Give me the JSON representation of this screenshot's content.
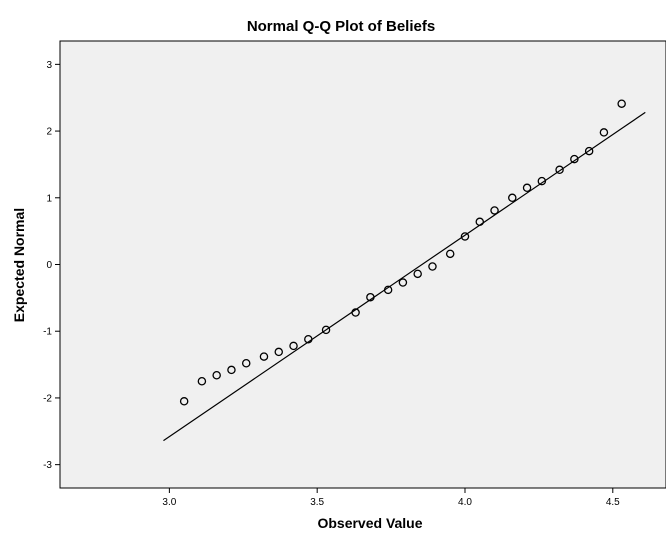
{
  "chart_data": {
    "type": "scatter",
    "title": "Normal Q-Q Plot of Beliefs",
    "xlabel": "Observed Value",
    "ylabel": "Expected Normal",
    "xlim": [
      2.63,
      4.68
    ],
    "ylim": [
      -3.35,
      3.35
    ],
    "x_ticks": [
      "3.0",
      "3.5",
      "4.0",
      "4.5"
    ],
    "x_tick_values": [
      3.0,
      3.5,
      4.0,
      4.5
    ],
    "y_ticks": [
      "3",
      "2",
      "1",
      "0",
      "-1",
      "-2",
      "-3"
    ],
    "y_tick_values": [
      3,
      2,
      1,
      0,
      -1,
      -2,
      -3
    ],
    "grid": false,
    "background_color": "#f0f0f0",
    "marker": "open-circle",
    "points": [
      {
        "x": 3.05,
        "y": -2.05
      },
      {
        "x": 3.11,
        "y": -1.75
      },
      {
        "x": 3.16,
        "y": -1.66
      },
      {
        "x": 3.21,
        "y": -1.58
      },
      {
        "x": 3.26,
        "y": -1.48
      },
      {
        "x": 3.32,
        "y": -1.38
      },
      {
        "x": 3.37,
        "y": -1.31
      },
      {
        "x": 3.42,
        "y": -1.22
      },
      {
        "x": 3.47,
        "y": -1.12
      },
      {
        "x": 3.53,
        "y": -0.98
      },
      {
        "x": 3.63,
        "y": -0.72
      },
      {
        "x": 3.68,
        "y": -0.49
      },
      {
        "x": 3.74,
        "y": -0.38
      },
      {
        "x": 3.79,
        "y": -0.27
      },
      {
        "x": 3.84,
        "y": -0.14
      },
      {
        "x": 3.89,
        "y": -0.03
      },
      {
        "x": 3.95,
        "y": 0.16
      },
      {
        "x": 4.0,
        "y": 0.42
      },
      {
        "x": 4.05,
        "y": 0.64
      },
      {
        "x": 4.1,
        "y": 0.81
      },
      {
        "x": 4.16,
        "y": 1.0
      },
      {
        "x": 4.21,
        "y": 1.15
      },
      {
        "x": 4.26,
        "y": 1.25
      },
      {
        "x": 4.32,
        "y": 1.42
      },
      {
        "x": 4.37,
        "y": 1.58
      },
      {
        "x": 4.42,
        "y": 1.7
      },
      {
        "x": 4.47,
        "y": 1.98
      },
      {
        "x": 4.53,
        "y": 2.41
      }
    ],
    "reference_line": {
      "x": [
        2.98,
        4.61
      ],
      "y": [
        -2.64,
        2.28
      ]
    }
  }
}
